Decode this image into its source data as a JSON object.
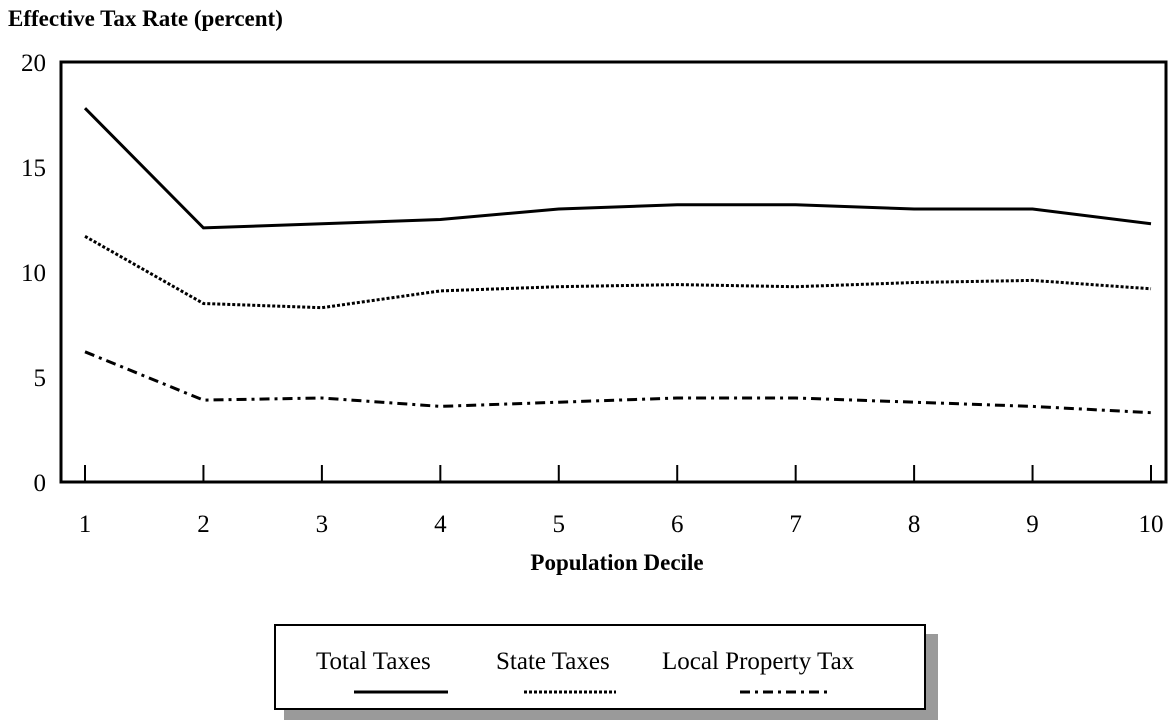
{
  "chart_data": {
    "type": "line",
    "ylabel": "Effective Tax Rate (percent)",
    "xlabel": "Population Decile",
    "x": [
      1,
      2,
      3,
      4,
      5,
      6,
      7,
      8,
      9,
      10
    ],
    "xticks": [
      "1",
      "2",
      "3",
      "4",
      "5",
      "6",
      "7",
      "8",
      "9",
      "10"
    ],
    "yticks": [
      "0",
      "5",
      "10",
      "15",
      "20"
    ],
    "ylim": [
      0,
      20
    ],
    "series": [
      {
        "name": "Total Taxes",
        "style": "solid",
        "values": [
          17.8,
          12.1,
          12.3,
          12.5,
          13.0,
          13.2,
          13.2,
          13.0,
          13.0,
          12.3
        ]
      },
      {
        "name": "State Taxes",
        "style": "dotted",
        "values": [
          11.7,
          8.5,
          8.3,
          9.1,
          9.3,
          9.4,
          9.3,
          9.5,
          9.6,
          9.2
        ]
      },
      {
        "name": "Local Property Tax",
        "style": "dash-dot",
        "values": [
          6.2,
          3.9,
          4.0,
          3.6,
          3.8,
          4.0,
          4.0,
          3.8,
          3.6,
          3.3
        ]
      }
    ],
    "legend_position": "bottom-center",
    "grid": false
  },
  "colors": {
    "line": "#000000",
    "legend_shadow": "#9a9a9a",
    "background": "#ffffff"
  }
}
